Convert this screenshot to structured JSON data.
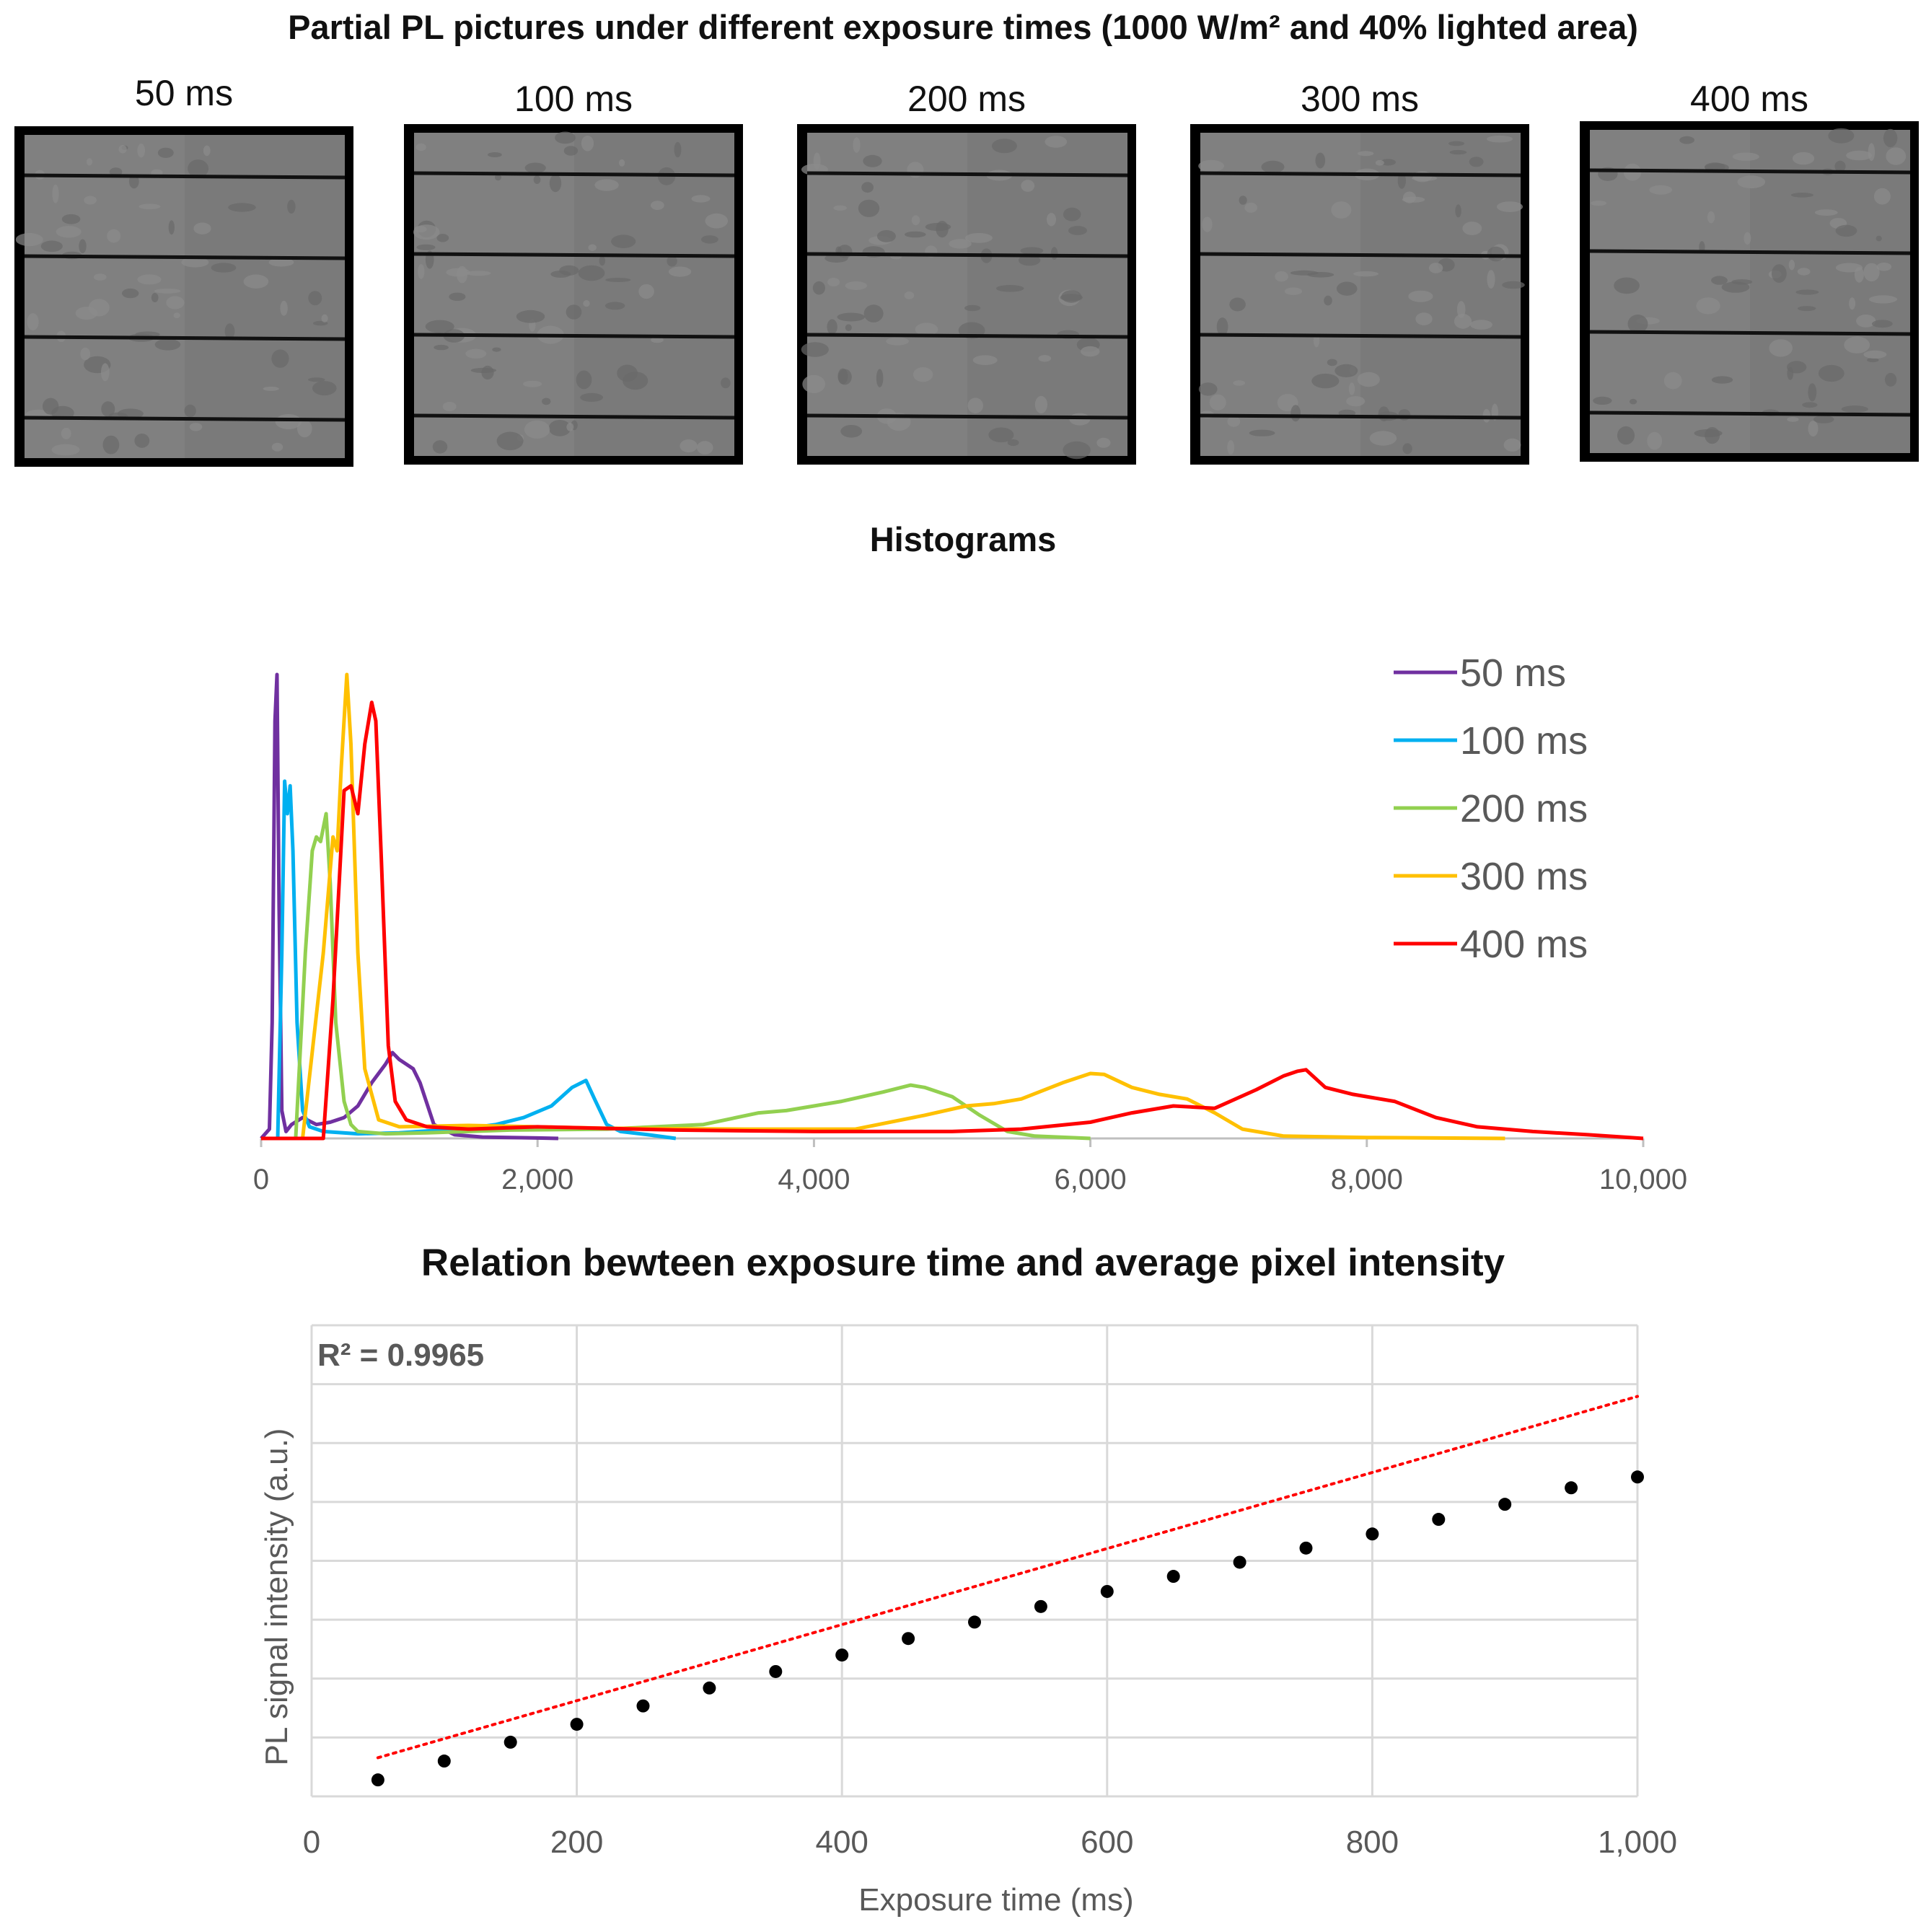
{
  "header": {
    "title": "Partial PL pictures under different exposure times (1000 W/m² and 40% lighted area)"
  },
  "pl_pictures": [
    {
      "label": "50 ms"
    },
    {
      "label": "100 ms"
    },
    {
      "label": "200 ms"
    },
    {
      "label": "300 ms"
    },
    {
      "label": "400 ms"
    }
  ],
  "chart_data": [
    {
      "type": "line",
      "title": "Histograms",
      "xlabel": "",
      "ylabel": "",
      "xlim": [
        0,
        10000
      ],
      "xticks": [
        "0",
        "2,000",
        "4,000",
        "6,000",
        "8,000",
        "10,000"
      ],
      "legend_position": "top-right",
      "grid": false,
      "series": [
        {
          "name": "50 ms",
          "color": "#7030A0",
          "x": [
            0,
            60,
            80,
            100,
            115,
            130,
            150,
            180,
            220,
            300,
            400,
            500,
            600,
            700,
            800,
            900,
            950,
            1000,
            1050,
            1100,
            1150,
            1250,
            1400,
            1600,
            1800,
            2000,
            2150
          ],
          "y": [
            0,
            20,
            250,
            900,
            1000,
            500,
            60,
            15,
            30,
            45,
            30,
            35,
            45,
            70,
            120,
            160,
            185,
            170,
            160,
            150,
            120,
            30,
            8,
            3,
            2,
            1,
            0
          ]
        },
        {
          "name": "100 ms",
          "color": "#00B0F0",
          "x": [
            0,
            120,
            150,
            170,
            190,
            210,
            230,
            260,
            300,
            350,
            450,
            700,
            1000,
            1300,
            1500,
            1700,
            1900,
            2100,
            2250,
            2350,
            2420,
            2500,
            2600,
            2800,
            3000
          ],
          "y": [
            0,
            0,
            400,
            770,
            700,
            760,
            620,
            250,
            60,
            25,
            15,
            10,
            12,
            18,
            22,
            30,
            45,
            70,
            110,
            125,
            80,
            30,
            15,
            8,
            0
          ]
        },
        {
          "name": "200 ms",
          "color": "#92D050",
          "x": [
            0,
            250,
            320,
            370,
            400,
            430,
            470,
            500,
            540,
            600,
            650,
            700,
            900,
            1200,
            1800,
            2500,
            3200,
            3600,
            3800,
            4000,
            4200,
            4500,
            4700,
            4800,
            5000,
            5200,
            5400,
            5600,
            6000
          ],
          "y": [
            0,
            0,
            400,
            620,
            650,
            640,
            700,
            550,
            250,
            80,
            30,
            15,
            10,
            12,
            18,
            20,
            30,
            55,
            60,
            70,
            80,
            100,
            115,
            110,
            90,
            50,
            15,
            5,
            0
          ]
        },
        {
          "name": "300 ms",
          "color": "#FFC000",
          "x": [
            0,
            300,
            450,
            520,
            550,
            580,
            620,
            650,
            700,
            750,
            850,
            1000,
            1500,
            2500,
            3500,
            4300,
            4800,
            5100,
            5300,
            5500,
            5800,
            6000,
            6100,
            6300,
            6500,
            6700,
            6900,
            7100,
            7400,
            8000,
            9000
          ],
          "y": [
            0,
            0,
            400,
            650,
            620,
            800,
            1000,
            850,
            400,
            150,
            40,
            25,
            28,
            22,
            20,
            20,
            50,
            70,
            75,
            85,
            120,
            140,
            138,
            110,
            95,
            85,
            55,
            20,
            5,
            2,
            0
          ]
        },
        {
          "name": "400 ms",
          "color": "#FF0000",
          "x": [
            0,
            450,
            520,
            600,
            650,
            700,
            750,
            800,
            830,
            870,
            920,
            970,
            1050,
            1200,
            1500,
            2000,
            3000,
            4000,
            5000,
            5500,
            6000,
            6300,
            6600,
            6900,
            7200,
            7400,
            7500,
            7560,
            7700,
            7900,
            8200,
            8500,
            8800,
            9200,
            9600,
            10000
          ],
          "y": [
            0,
            0,
            300,
            750,
            760,
            700,
            850,
            940,
            900,
            600,
            200,
            80,
            40,
            25,
            20,
            25,
            18,
            15,
            15,
            20,
            35,
            55,
            70,
            65,
            105,
            135,
            145,
            148,
            110,
            95,
            80,
            45,
            25,
            15,
            8,
            0
          ]
        }
      ]
    },
    {
      "type": "scatter",
      "title": "Relation bewteen exposure time and average pixel intensity",
      "xlabel": "Exposure time (ms)",
      "ylabel": "PL signal intensity (a.u.)",
      "xlim": [
        0,
        1000
      ],
      "ylim": [
        0,
        1
      ],
      "xticks": [
        "0",
        "200",
        "400",
        "600",
        "800",
        "1,000"
      ],
      "grid": true,
      "annotation": "R² = 0.9965",
      "trendline": {
        "type": "linear",
        "color": "#FF0000",
        "style": "dotted",
        "x": [
          50,
          1000
        ],
        "y": [
          0.082,
          0.849
        ]
      },
      "series": [
        {
          "name": "",
          "color": "#000000",
          "x": [
            50,
            100,
            150,
            200,
            250,
            300,
            350,
            400,
            450,
            500,
            550,
            600,
            650,
            700,
            750,
            800,
            850,
            900,
            950,
            1000
          ],
          "y": [
            0.035,
            0.075,
            0.115,
            0.153,
            0.192,
            0.23,
            0.265,
            0.3,
            0.335,
            0.37,
            0.403,
            0.435,
            0.467,
            0.497,
            0.527,
            0.557,
            0.588,
            0.62,
            0.655,
            0.678
          ]
        }
      ]
    }
  ]
}
